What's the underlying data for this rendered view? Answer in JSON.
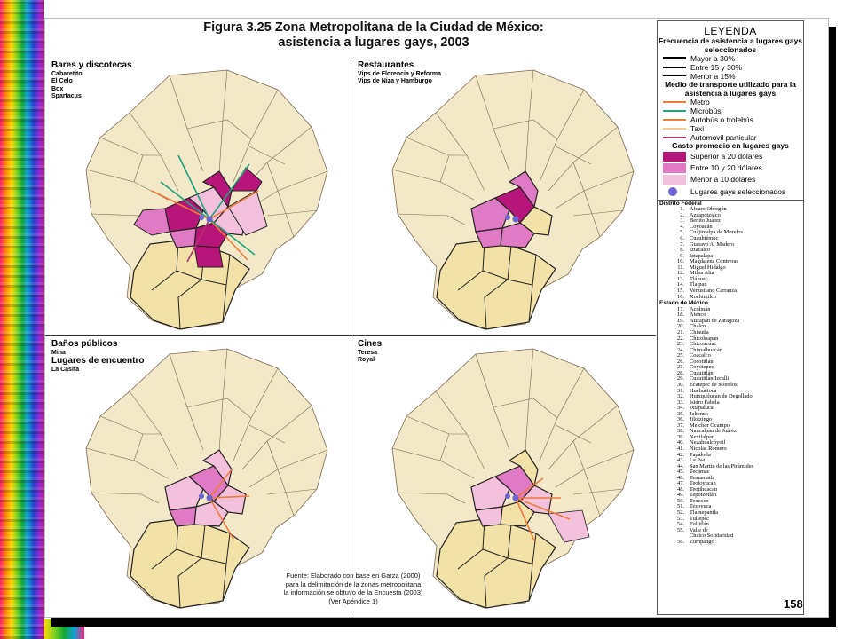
{
  "title_line1": "Figura 3.25 Zona Metropolitana de la Ciudad de México:",
  "title_line2": "asistencia a lugares gays, 2003",
  "quadrants": [
    {
      "heading": "Bares y discotecas",
      "subs": [
        "Cabaretito",
        "El Celo",
        "Box",
        "Spartacus"
      ]
    },
    {
      "heading": "Restaurantes",
      "subs": [
        "Vips de Florencia y Reforma",
        "Vips de Niza y Hamburgo"
      ]
    },
    {
      "heading": "Baños públicos",
      "subs": [
        "Mina"
      ],
      "heading2": "Lugares de encuentro",
      "subs2": [
        "La Casita"
      ]
    },
    {
      "heading": "Cines",
      "subs": [
        "Teresa",
        "Royal"
      ]
    }
  ],
  "source": [
    "Fuente: Elaborado con base en Garza (2000)",
    "para la delimitación de la zonas metropolitana",
    "la información se obtuvo de la Encuesta (2003)",
    "(Ver Apéndice 1)"
  ],
  "legend": {
    "title": "LEYENDA",
    "freq_heading": "Frecuencia de asistencia a lugares gays seleccionados",
    "freq": [
      "Mayor a 30%",
      "Entre 15 y 30%",
      "Menor a 15%"
    ],
    "transport_heading": "Medio de transporte utilizado para la asistencia a lugares gays",
    "transport": [
      {
        "label": "Metro",
        "color": "#f07a3a"
      },
      {
        "label": "Microbús",
        "color": "#1ea37a"
      },
      {
        "label": "Autobús o trolebús",
        "color": "#e8803a"
      },
      {
        "label": "Taxi",
        "color": "#f2c98a"
      },
      {
        "label": "Automovil particular",
        "color": "#b0306a"
      }
    ],
    "spend_heading": "Gasto promedio en lugares gays",
    "spend": [
      {
        "label": "Superior a 20 dólares",
        "color": "#b8157a"
      },
      {
        "label": "Entre 10 y 20 dólares",
        "color": "#e07ac4"
      },
      {
        "label": "Menor a 10 dólares",
        "color": "#f4c1dc"
      }
    ],
    "places_label": "Lugares gays seleccionados",
    "df_heading": "Distrito Federal",
    "df": [
      "Álvaro Obregón",
      "Azcapotzalco",
      "Benito Juárez",
      "Coyoacán",
      "Cuajimalpa de Morelos",
      "Cuauhtémoc",
      "Gustavo A. Madero",
      "Iztacalco",
      "Iztapalapa",
      "Magdalena Contreras",
      "Miguel Hidalgo",
      "Milpa Alta",
      "Tláhuac",
      "Tlalpan",
      "Venustiano Carranza",
      "Xochimilco"
    ],
    "edomex_heading": "Estado de México",
    "edomex": [
      "Acolmán",
      "Atenco",
      "Atizapán de Zaragoza",
      "Chalco",
      "Chiautla",
      "Chicoloapan",
      "Chiconcuac",
      "Chimalhuacán",
      "Coacalco",
      "Cocotitlán",
      "Coyotepec",
      "Cuautitlán",
      "Cuautitlán Izcalli",
      "Ecatepec de Morelos",
      "Huehuetoca",
      "Huixquilucan de Degollado",
      "Isidro Fabela",
      "Ixtapaluca",
      "Jaltenco",
      "Jilotzingo",
      "Melchor Ocampo",
      "Naucalpan de Juárez",
      "Nextlalpan",
      "Nezahualcóyotl",
      "Nicolás Romero",
      "Papalotla",
      "La Paz",
      "San Martín de las Pirámides",
      "Tecámac",
      "Temamatla",
      "Teoloyucan",
      "Teotihuacan",
      "Tepotzotlán",
      "Texcoco",
      "Tezoyuca",
      "Tlalnepantla",
      "Tultepec",
      "Tultitlán",
      "Valle de|Chalco Solidaridad",
      "Zumpango"
    ]
  },
  "page_number": "158",
  "colors": {
    "base": "#f3e2a8",
    "outer": "#f3e8c8",
    "border": "#7a6a50"
  }
}
